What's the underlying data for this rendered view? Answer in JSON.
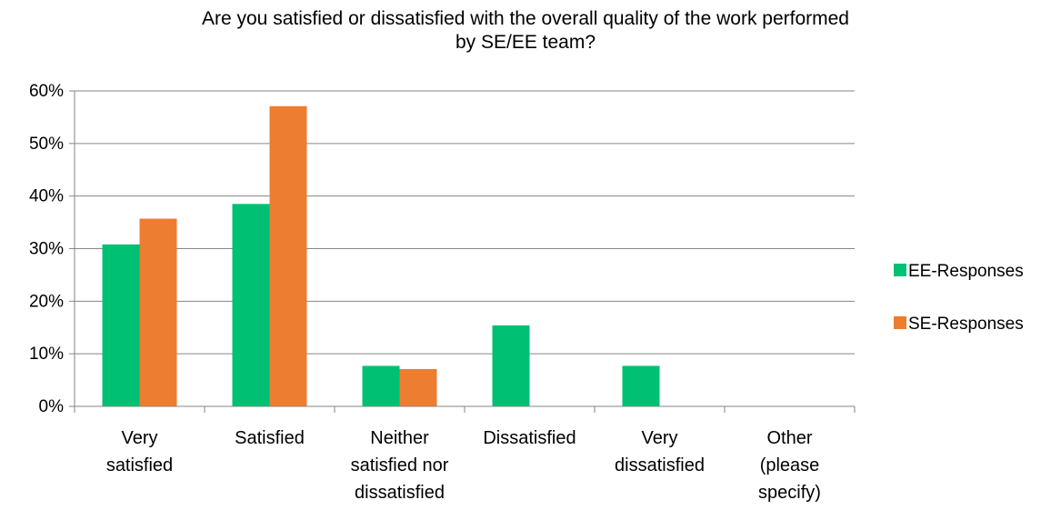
{
  "chart_data": {
    "type": "bar",
    "title": "Are you satisfied or dissatisfied with the overall quality of the work performed\nby SE/EE team?",
    "categories": [
      [
        "Very",
        "satisfied"
      ],
      [
        "Satisfied"
      ],
      [
        "Neither",
        "satisfied nor",
        "dissatisfied"
      ],
      [
        "Dissatisfied"
      ],
      [
        "Very",
        "dissatisfied"
      ],
      [
        "Other",
        "(please",
        "specify)"
      ]
    ],
    "series": [
      {
        "name": "EE-Responses",
        "color": "#00c073",
        "values": [
          30.8,
          38.5,
          7.7,
          15.4,
          7.7,
          0
        ]
      },
      {
        "name": "SE-Responses",
        "color": "#ed7d31",
        "values": [
          35.7,
          57.1,
          7.1,
          0,
          0,
          0
        ]
      }
    ],
    "ylim": [
      0,
      60
    ],
    "yticks": [
      0,
      10,
      20,
      30,
      40,
      50,
      60
    ],
    "ytick_labels": [
      "0%",
      "10%",
      "20%",
      "30%",
      "40%",
      "50%",
      "60%"
    ],
    "xlabel": "",
    "ylabel": "",
    "grid": true,
    "legend_position": "right"
  }
}
